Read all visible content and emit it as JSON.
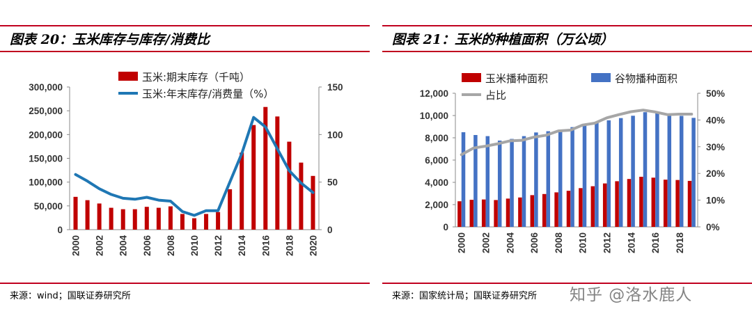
{
  "figures": {
    "left": {
      "title": "图表 20：玉米库存与库存/消费比",
      "source": "来源：wind；国联证券研究所"
    },
    "right": {
      "title": "图表 21：玉米的种植面积（万公顷）",
      "source": "来源：国家统计局；国联证券研究所"
    }
  },
  "watermark": "知乎 @洛水鹿人",
  "chart_data": [
    {
      "type": "bar",
      "title": "图表 20：玉米库存与库存/消费比",
      "categories": [
        "2000",
        "2001",
        "2002",
        "2003",
        "2004",
        "2005",
        "2006",
        "2007",
        "2008",
        "2009",
        "2010",
        "2011",
        "2012",
        "2013",
        "2014",
        "2015",
        "2016",
        "2017",
        "2018",
        "2019",
        "2020"
      ],
      "x_tick_labels": [
        "2000",
        "2002",
        "2004",
        "2006",
        "2008",
        "2010",
        "2012",
        "2014",
        "2016",
        "2018",
        "2020"
      ],
      "series": [
        {
          "name": "玉米:期末库存（千吨）",
          "type": "bar",
          "axis": "left",
          "color": "#c00000",
          "values": [
            69000,
            62000,
            55000,
            46000,
            43000,
            43000,
            48000,
            46000,
            49000,
            33000,
            24000,
            33000,
            37000,
            85000,
            162000,
            220000,
            258000,
            238000,
            185000,
            141000,
            113000
          ]
        },
        {
          "name": "玉米:年末库存/消费量（%）",
          "type": "line",
          "axis": "right",
          "color": "#1f77b4",
          "values": [
            58,
            51,
            43,
            37,
            33,
            32,
            34,
            31,
            30,
            19,
            15,
            20,
            20,
            50,
            80,
            118,
            108,
            85,
            62,
            49,
            39
          ]
        }
      ],
      "y_left": {
        "min": 0,
        "max": 300000,
        "ticks": [
          "0",
          "50,000",
          "100,000",
          "150,000",
          "200,000",
          "250,000",
          "300,000"
        ]
      },
      "y_right": {
        "min": 0,
        "max": 150,
        "ticks": [
          "0",
          "50",
          "100",
          "150"
        ]
      }
    },
    {
      "type": "bar",
      "title": "图表 21：玉米的种植面积（万公顷）",
      "categories": [
        "2000",
        "2001",
        "2002",
        "2003",
        "2004",
        "2005",
        "2006",
        "2007",
        "2008",
        "2009",
        "2010",
        "2011",
        "2012",
        "2013",
        "2014",
        "2015",
        "2016",
        "2017",
        "2018",
        "2019"
      ],
      "x_tick_labels": [
        "2000",
        "2002",
        "2004",
        "2006",
        "2008",
        "2010",
        "2012",
        "2014",
        "2016",
        "2018"
      ],
      "series": [
        {
          "name": "玉米播种面积",
          "type": "bar",
          "axis": "left",
          "color": "#c00000",
          "values": [
            2300,
            2430,
            2460,
            2410,
            2540,
            2640,
            2850,
            2950,
            3100,
            3240,
            3480,
            3650,
            3900,
            4100,
            4300,
            4500,
            4420,
            4240,
            4210,
            4130
          ]
        },
        {
          "name": "谷物播种面积",
          "type": "bar",
          "axis": "left",
          "color": "#4472c4",
          "values": [
            8500,
            8250,
            8150,
            7750,
            7900,
            8150,
            8480,
            8590,
            8640,
            8960,
            9130,
            9410,
            9570,
            9770,
            9980,
            10300,
            10300,
            10090,
            9970,
            9790
          ]
        },
        {
          "name": "占比",
          "type": "line",
          "axis": "right",
          "color": "#a6a6a6",
          "values": [
            27,
            29.5,
            30.2,
            31.1,
            32.2,
            32.4,
            33.6,
            34.3,
            35.9,
            36.2,
            38.1,
            38.8,
            40.8,
            42.0,
            43.1,
            43.7,
            43.0,
            42.0,
            42.2,
            42.2
          ]
        }
      ],
      "y_left": {
        "min": 0,
        "max": 12000,
        "ticks": [
          "0",
          "2,000",
          "4,000",
          "6,000",
          "8,000",
          "10,000",
          "12,000"
        ]
      },
      "y_right": {
        "min": 0,
        "max": 50,
        "ticks": [
          "0%",
          "10%",
          "20%",
          "30%",
          "40%",
          "50%"
        ]
      }
    }
  ]
}
